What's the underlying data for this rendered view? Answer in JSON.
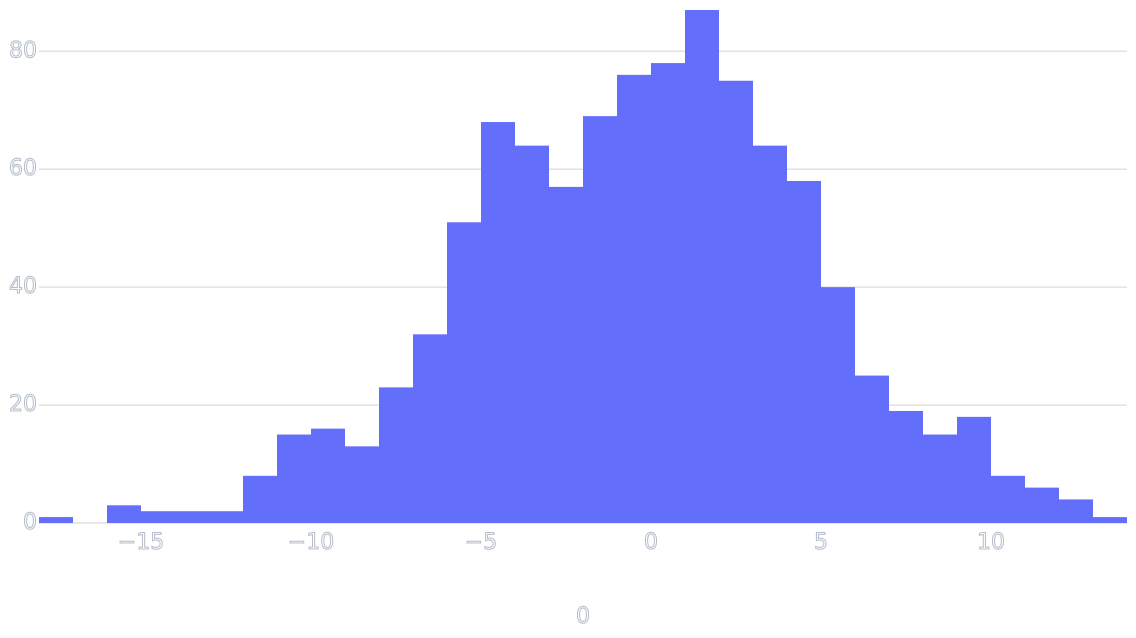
{
  "chart_data": {
    "type": "histogram",
    "x_label": "0",
    "bins": [
      -18,
      -17,
      -16,
      -15,
      -14,
      -13,
      -12,
      -11,
      -10,
      -9,
      -8,
      -7,
      -6,
      -5,
      -4,
      -3,
      -2,
      -1,
      0,
      1,
      2,
      3,
      4,
      5,
      6,
      7,
      8,
      9,
      10,
      11,
      12,
      13,
      14
    ],
    "values": [
      1,
      0,
      3,
      2,
      2,
      2,
      8,
      15,
      16,
      13,
      23,
      32,
      51,
      68,
      64,
      57,
      69,
      76,
      78,
      87,
      75,
      64,
      58,
      40,
      25,
      19,
      15,
      18,
      8,
      6,
      4,
      1
    ],
    "color": "#636efa",
    "xlim": [
      -18,
      14
    ],
    "xticks": [
      {
        "value": -15,
        "label": "−15"
      },
      {
        "value": -10,
        "label": "−10"
      },
      {
        "value": -5,
        "label": "−5"
      },
      0,
      5,
      10
    ],
    "ylim": [
      0,
      87
    ],
    "yticks": [
      0,
      20,
      40,
      60,
      80
    ],
    "grid": true
  }
}
